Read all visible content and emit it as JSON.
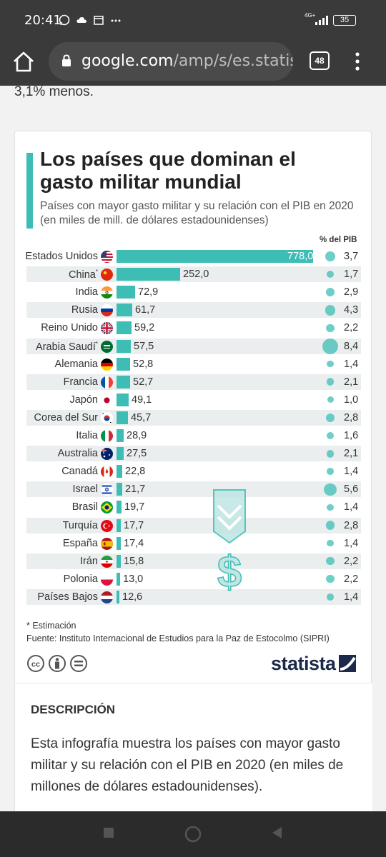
{
  "status_bar": {
    "time": "20:41",
    "network": "4G+",
    "battery": "35"
  },
  "browser": {
    "url_domain": "google.com",
    "url_path": "/amp/s/es.statis",
    "tab_count": "48"
  },
  "page": {
    "previous_text": "3,1% menos."
  },
  "chart_data": {
    "type": "bar",
    "title": "Los países que dominan el gasto militar mundial",
    "subtitle": "Países con mayor gasto militar y su relación con el PIB en 2020 (en miles de mill. de dólares estadounidenses)",
    "secondary_header": "% del PIB",
    "categories": [
      "Estados Unidos",
      "China",
      "India",
      "Rusia",
      "Reino Unido",
      "Arabia Saudí",
      "Alemania",
      "Francia",
      "Japón",
      "Corea del Sur",
      "Italia",
      "Australia",
      "Canadá",
      "Israel",
      "Brasil",
      "Turquía",
      "España",
      "Irán",
      "Polonia",
      "Países Bajos"
    ],
    "estimated": [
      false,
      true,
      false,
      false,
      false,
      true,
      false,
      false,
      false,
      false,
      false,
      false,
      false,
      false,
      false,
      false,
      false,
      false,
      false,
      false
    ],
    "series": [
      {
        "values": [
          778.0,
          252.0,
          72.9,
          61.7,
          59.2,
          57.5,
          52.8,
          52.7,
          49.1,
          45.7,
          28.9,
          27.5,
          22.8,
          21.7,
          19.7,
          17.7,
          17.4,
          15.8,
          13.0,
          12.6
        ]
      },
      {
        "values": [
          3.7,
          1.7,
          2.9,
          4.3,
          2.2,
          8.4,
          1.4,
          2.1,
          1.0,
          2.8,
          1.6,
          2.1,
          1.4,
          5.6,
          1.4,
          2.8,
          1.4,
          2.2,
          2.2,
          1.4
        ]
      }
    ],
    "value_labels": [
      "778,0",
      "252,0",
      "72,9",
      "61,7",
      "59,2",
      "57,5",
      "52,8",
      "52,7",
      "49,1",
      "45,7",
      "28,9",
      "27,5",
      "22,8",
      "21,7",
      "19,7",
      "17,7",
      "17,4",
      "15,8",
      "13,0",
      "12,6"
    ],
    "pib_labels": [
      "3,7",
      "1,7",
      "2,9",
      "4,3",
      "2,2",
      "8,4",
      "1,4",
      "2,1",
      "1,0",
      "2,8",
      "1,6",
      "2,1",
      "1,4",
      "5,6",
      "1,4",
      "2,8",
      "1,4",
      "2,2",
      "2,2",
      "1,4"
    ],
    "bar_color": "#3ebdb5"
  },
  "footnote": {
    "estimate_note": "* Estimación",
    "source": "Fuente: Instituto Internacional de Estudios para la Paz de Estocolmo (SIPRI)"
  },
  "brand": {
    "name": "statista"
  },
  "description": {
    "heading": "DESCRIPCIÓN",
    "body": "Esta infografía muestra los países con mayor gasto militar y su relación con el PIB en 2020 (en miles de millones de dólares estadounidenses)."
  },
  "icons": {
    "flags": [
      "us-flag-icon",
      "cn-flag-icon",
      "in-flag-icon",
      "ru-flag-icon",
      "gb-flag-icon",
      "sa-flag-icon",
      "de-flag-icon",
      "fr-flag-icon",
      "jp-flag-icon",
      "kr-flag-icon",
      "it-flag-icon",
      "au-flag-icon",
      "ca-flag-icon",
      "il-flag-icon",
      "br-flag-icon",
      "tr-flag-icon",
      "es-flag-icon",
      "ir-flag-icon",
      "pl-flag-icon",
      "nl-flag-icon"
    ]
  }
}
